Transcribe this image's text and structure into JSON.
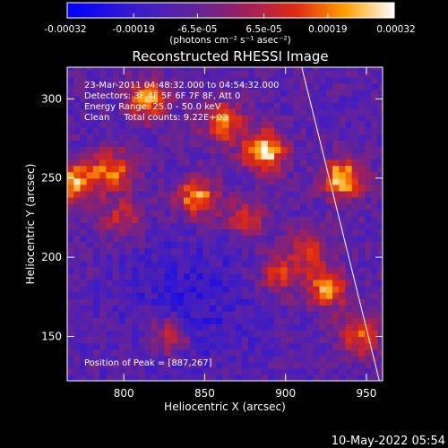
{
  "chart_data": {
    "type": "heatmap",
    "title": "Reconstructed RHESSI Image",
    "xlabel": "Heliocentric X (arcsec)",
    "ylabel": "Heliocentric Y (arcsec)",
    "xlim": [
      765,
      960
    ],
    "ylim": [
      122,
      320
    ],
    "xticks": [
      800,
      850,
      900,
      950
    ],
    "yticks": [
      150,
      200,
      250,
      300
    ],
    "colorbar": {
      "min": -0.00032,
      "max": 0.00032,
      "ticks": [
        "-0.00032",
        "-0.00019",
        "-6.5e-05",
        "6.5e-05",
        "0.00019",
        "0.00032"
      ],
      "label": "(photons cm⁻² s⁻¹ asec⁻²)"
    },
    "annotations": [
      "23-Mar-2011 04:48:32.000 to 04:54:32.000",
      "Detectors: 3F 4F 5F 6F 7F 8F, Att 0",
      "Energy Range: 25.0 - 50.0 keV",
      "Clean     Total counts: 9.22E+03"
    ],
    "peak_text": "Position of Peak = [887,267]",
    "peak": [
      887,
      267
    ],
    "limb_line": [
      [
        910,
        320
      ],
      [
        958,
        122
      ]
    ],
    "hotspots": [
      {
        "x": 887,
        "y": 267,
        "intensity": 1.0
      },
      {
        "x": 935,
        "y": 250,
        "intensity": 0.95
      },
      {
        "x": 770,
        "y": 248,
        "intensity": 0.85
      },
      {
        "x": 815,
        "y": 300,
        "intensity": 0.8
      },
      {
        "x": 862,
        "y": 285,
        "intensity": 0.75
      },
      {
        "x": 845,
        "y": 238,
        "intensity": 0.8
      },
      {
        "x": 793,
        "y": 255,
        "intensity": 0.7
      },
      {
        "x": 925,
        "y": 180,
        "intensity": 0.75
      },
      {
        "x": 895,
        "y": 190,
        "intensity": 0.55
      },
      {
        "x": 945,
        "y": 150,
        "intensity": 0.65
      },
      {
        "x": 828,
        "y": 150,
        "intensity": 0.55
      },
      {
        "x": 915,
        "y": 205,
        "intensity": 0.5
      },
      {
        "x": 800,
        "y": 225,
        "intensity": 0.5
      },
      {
        "x": 875,
        "y": 225,
        "intensity": 0.45
      }
    ]
  },
  "timestamp": "10-May-2022 05:54"
}
